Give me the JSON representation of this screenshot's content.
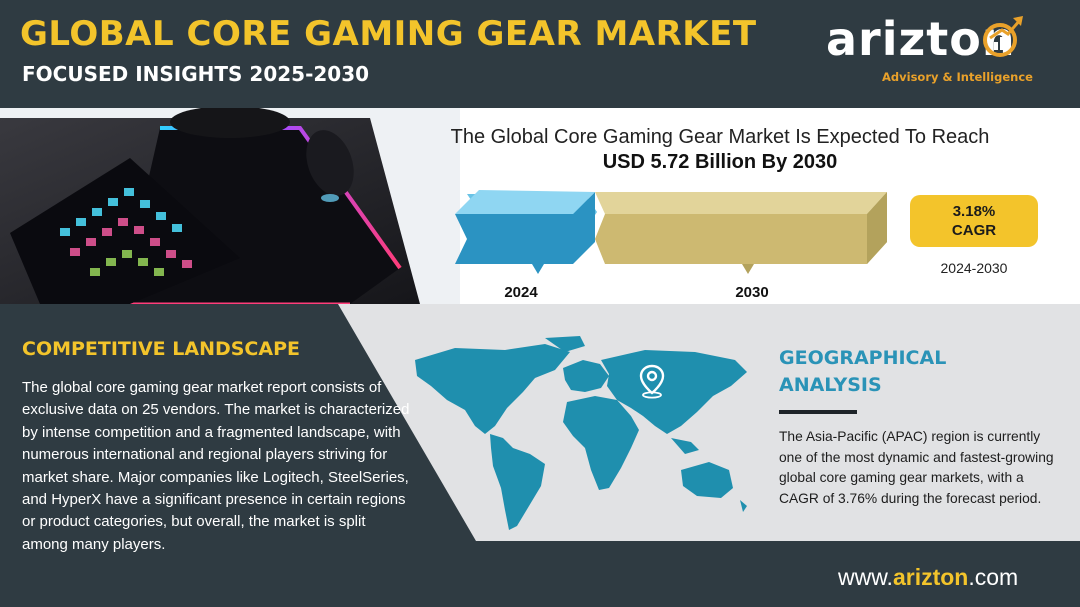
{
  "header": {
    "title": "GLOBAL CORE GAMING GEAR MARKET",
    "subtitle": "FOCUSED INSIGHTS 2025-2030"
  },
  "logo": {
    "wordmark": "arizton",
    "tagline": "Advisory & Intelligence"
  },
  "forecast": {
    "line1": "The Global Core Gaming Gear Market Is Expected To Reach",
    "line2": "USD 5.72 Billion By 2030",
    "bars": [
      {
        "year": "2024",
        "color": "#2b93c2"
      },
      {
        "year": "2030",
        "color": "#cdb971"
      }
    ],
    "cagr_value": "3.18%",
    "cagr_label": "CAGR",
    "cagr_period": "2024-2030"
  },
  "competitive": {
    "heading": "COMPETITIVE LANDSCAPE",
    "body": "The global core gaming gear market report consists of exclusive data on 25 vendors. The market is characterized by intense competition and a fragmented landscape, with numerous international and regional players striving for market share. Major companies like Logitech, SteelSeries, and HyperX have a significant presence in certain regions or product categories, but overall, the market is split among many players."
  },
  "geography": {
    "heading_line1": "GEOGRAPHICAL",
    "heading_line2": "ANALYSIS",
    "body": "The Asia-Pacific (APAC) region is currently one of the most dynamic and fastest-growing global core gaming gear markets, with a CAGR of 3.76% during the forecast period.",
    "map_icon": "location-pin-icon"
  },
  "footer": {
    "url_prefix": "www.",
    "url_brand": "arizton",
    "url_suffix": ".com"
  },
  "colors": {
    "dark": "#2f3b42",
    "yellow": "#f3c42b",
    "teal": "#2a93b7",
    "map": "#1f8fae"
  }
}
